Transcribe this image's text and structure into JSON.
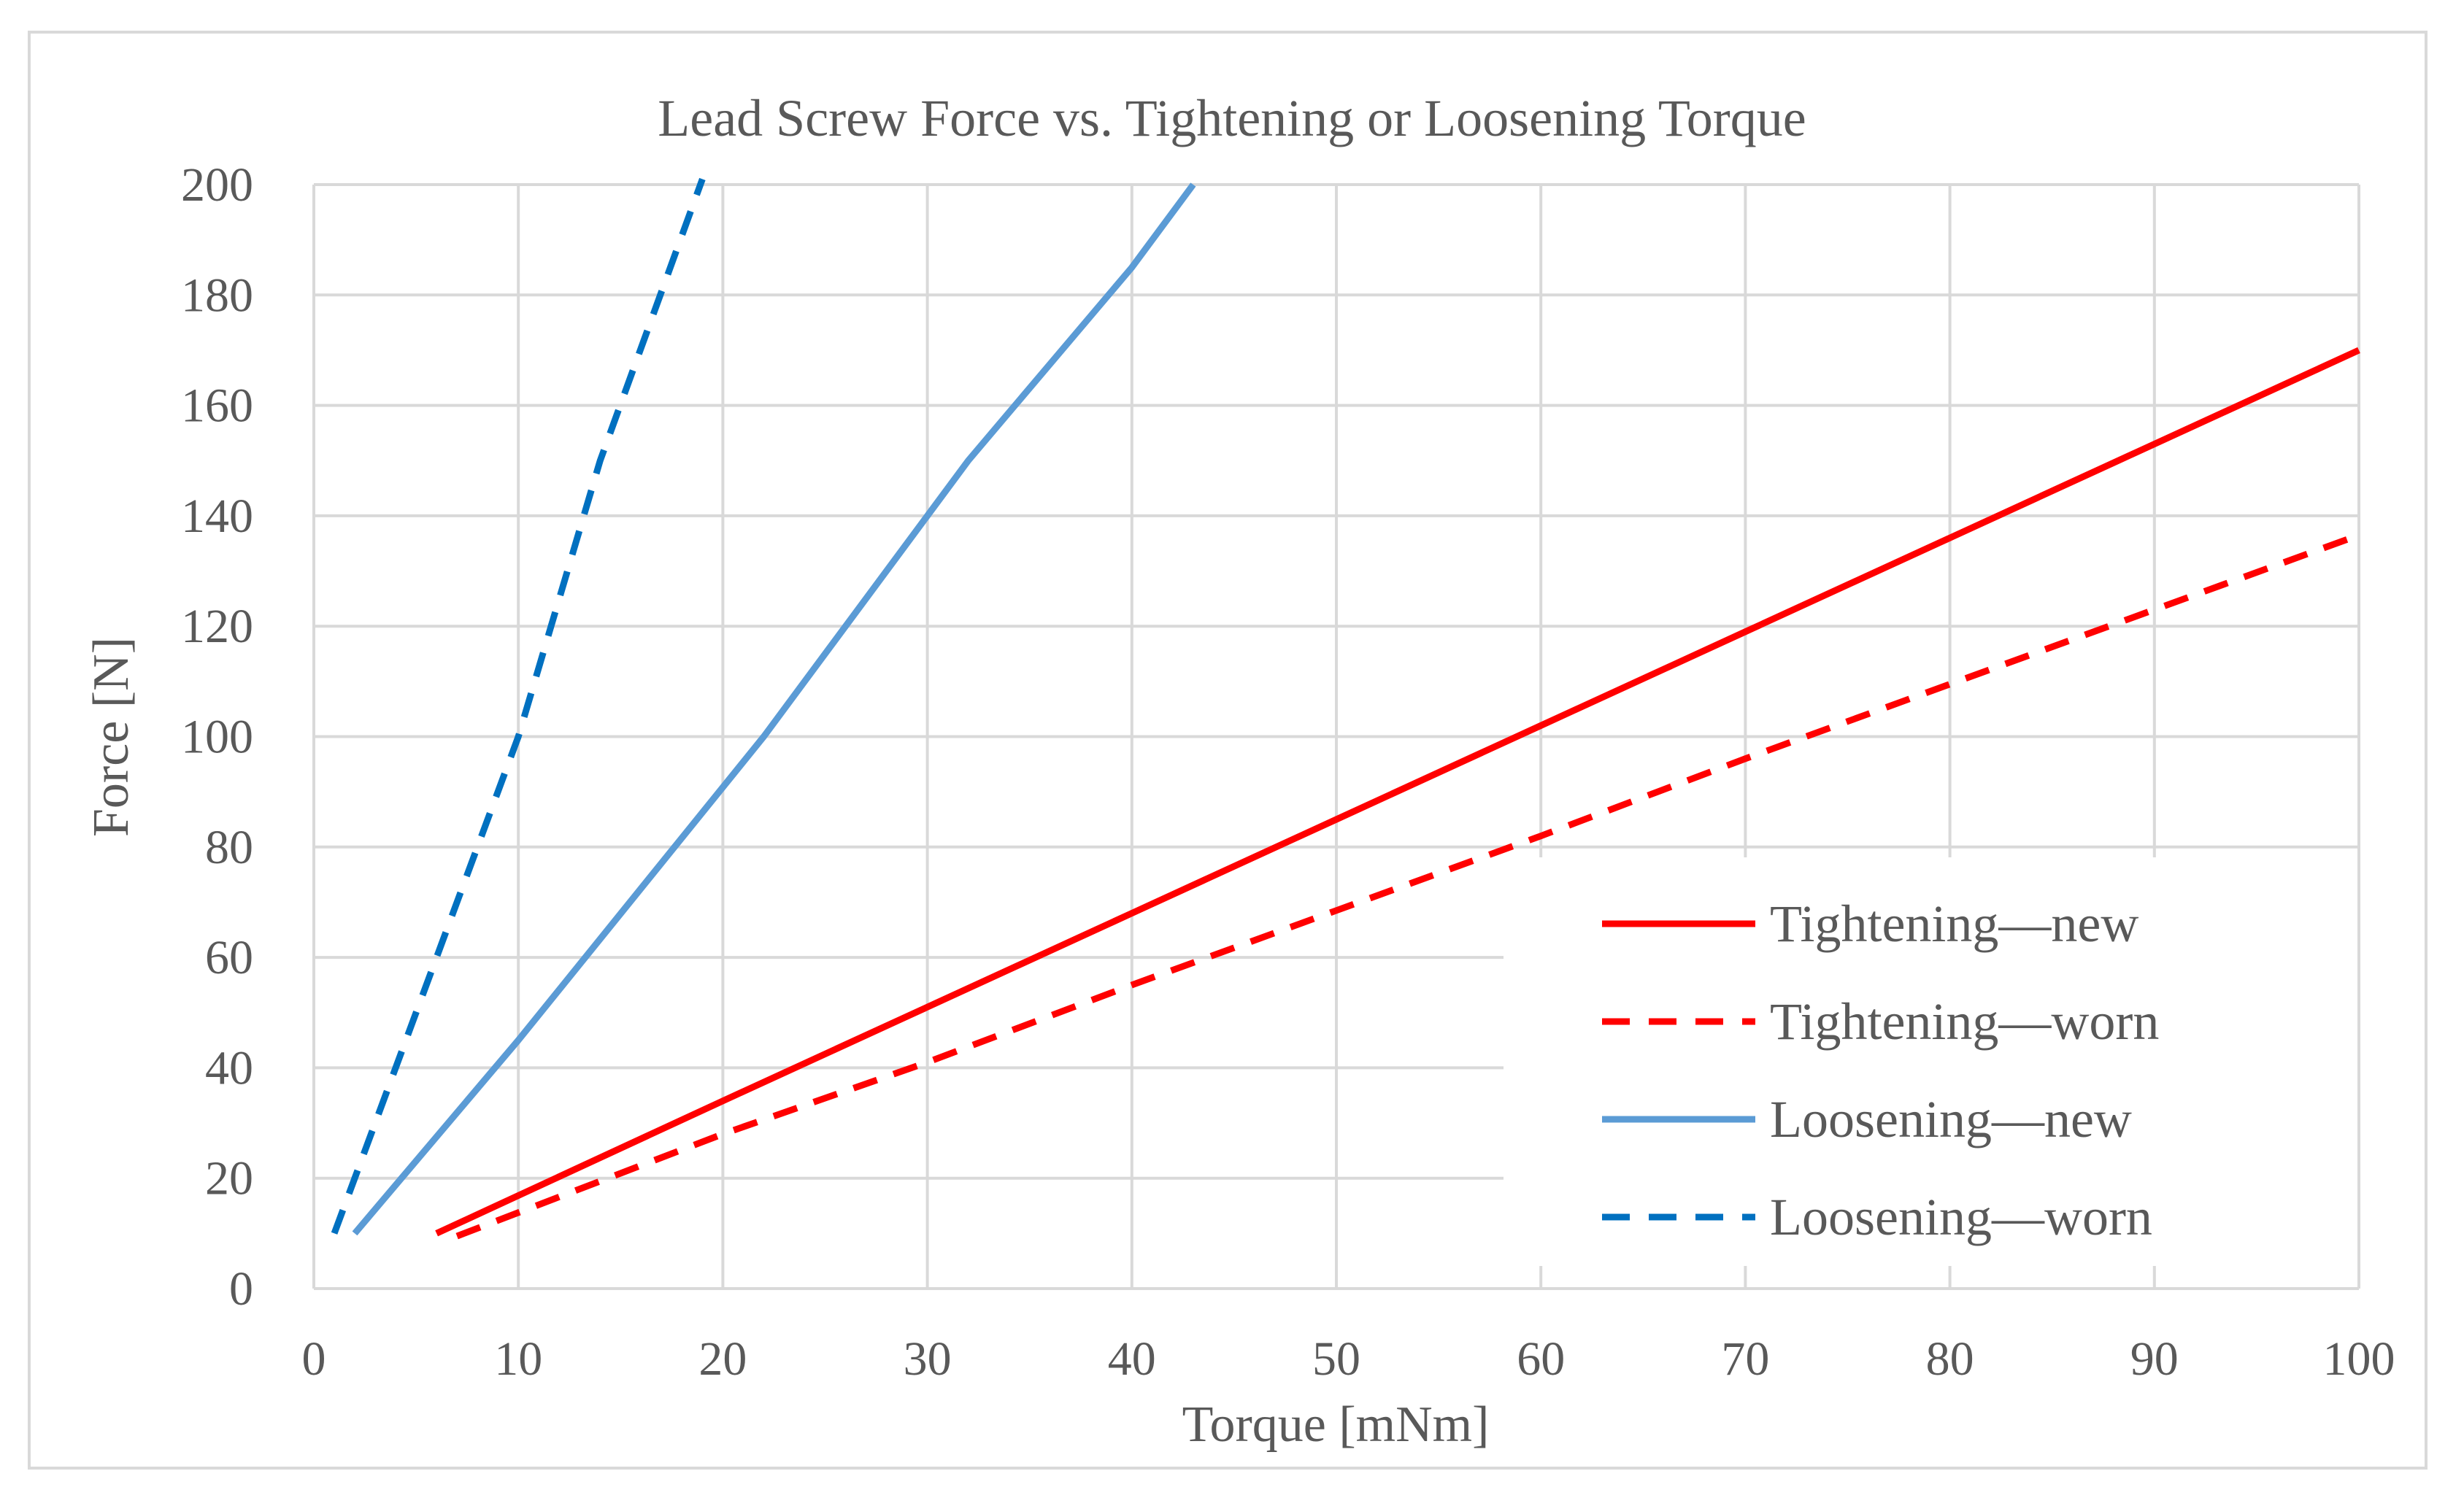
{
  "chart_data": {
    "type": "line",
    "title": "Lead Screw Force vs. Tightening or Loosening Torque",
    "xlabel": "Torque [mNm]",
    "ylabel": "Force [N]",
    "xlim": [
      0,
      100
    ],
    "ylim": [
      0,
      200
    ],
    "xticks": [
      0,
      10,
      20,
      30,
      40,
      50,
      60,
      70,
      80,
      90,
      100
    ],
    "yticks": [
      0,
      20,
      40,
      60,
      80,
      100,
      120,
      140,
      160,
      180,
      200
    ],
    "grid": true,
    "legend_position": "bottom-right",
    "series": [
      {
        "name": "Tightening—new",
        "color": "#ff0000",
        "dash": "solid",
        "x": [
          6,
          20,
          30,
          40,
          50,
          60,
          70,
          80,
          90,
          100
        ],
        "y": [
          10,
          34,
          51,
          68,
          85,
          102,
          119,
          136,
          153,
          170
        ]
      },
      {
        "name": "Tightening—worn",
        "color": "#ff0000",
        "dash": "dashed",
        "x": [
          7,
          20,
          30,
          40,
          50,
          60,
          70,
          80,
          90,
          100
        ],
        "y": [
          9.5,
          28,
          41,
          55,
          68.5,
          82,
          96,
          109.5,
          123,
          136.5
        ]
      },
      {
        "name": "Loosening—new",
        "color": "#5b9bd5",
        "dash": "solid",
        "x": [
          2,
          10,
          22,
          30,
          32,
          40,
          43
        ],
        "y": [
          10,
          45,
          100,
          140,
          150,
          185,
          200
        ]
      },
      {
        "name": "Loosening—worn",
        "color": "#0070c0",
        "dash": "dashed",
        "x": [
          1,
          5,
          10,
          14,
          19
        ],
        "y": [
          10,
          50,
          100,
          150,
          201
        ]
      }
    ]
  }
}
